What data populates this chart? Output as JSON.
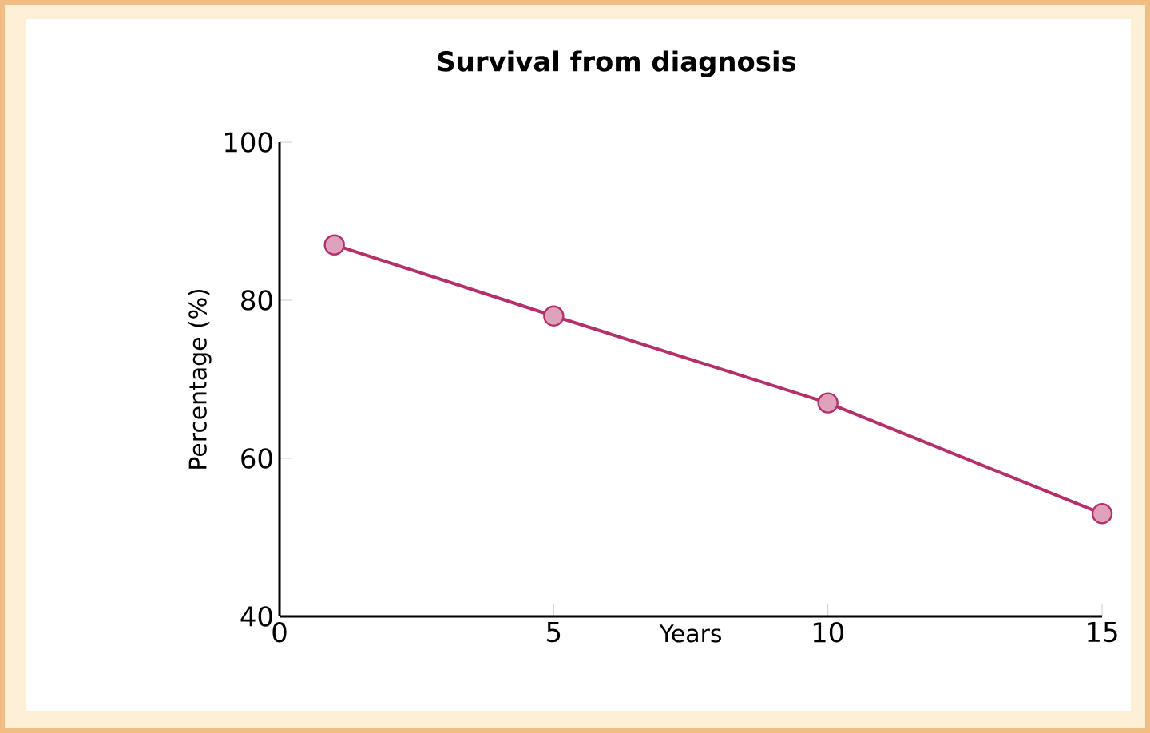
{
  "chart_data": {
    "type": "line",
    "title": "Survival from diagnosis",
    "xlabel": "Years",
    "ylabel": "Percentage (%)",
    "x": [
      1,
      5,
      10,
      15
    ],
    "series": [
      {
        "color": "#b5306b",
        "values": [
          87,
          78,
          67,
          53
        ]
      }
    ],
    "xlim": [
      0,
      15
    ],
    "xticks": [
      0,
      5,
      10,
      15
    ],
    "ylim": [
      40,
      100
    ],
    "yticks": [
      40,
      60,
      80,
      100
    ],
    "marker": "circle",
    "line_style": "solid",
    "grid": false
  }
}
